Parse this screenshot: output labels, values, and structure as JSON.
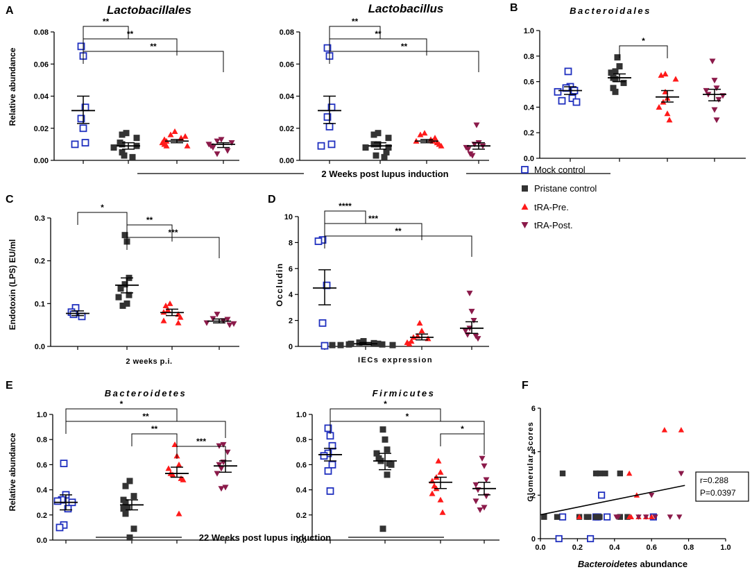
{
  "legend": {
    "items": [
      {
        "label": "Mock control",
        "marker": "square-open",
        "color": "#1f2fbf"
      },
      {
        "label": "Pristane control",
        "marker": "square",
        "color": "#333333"
      },
      {
        "label": "tRA-Pre.",
        "marker": "triangle-up",
        "color": "#ff1a1a"
      },
      {
        "label": "tRA-Post.",
        "marker": "triangle-down",
        "color": "#8b1a4a"
      }
    ]
  },
  "captions": {
    "two_weeks": "2 Weeks post lupus induction",
    "twentytwo_weeks": "22 Weeks post lupus induction"
  },
  "chart_data": [
    {
      "id": "A1",
      "type": "scatter",
      "panel_label": "A",
      "title": "Lactobacillales",
      "title_style": "italic",
      "ylabel": "Relative abundance",
      "xlabel": "",
      "ylim": [
        0,
        0.08
      ],
      "yticks": [
        "0.00",
        "0.02",
        "0.04",
        "0.06",
        "0.08"
      ],
      "groups": [
        {
          "name": "Mock control",
          "values": [
            0.071,
            0.065,
            0.033,
            0.026,
            0.02,
            0.011,
            0.01
          ],
          "mean": 0.031,
          "sem_low": 0.023,
          "sem_high": 0.04
        },
        {
          "name": "Pristane control",
          "values": [
            0.017,
            0.016,
            0.014,
            0.011,
            0.01,
            0.009,
            0.008,
            0.005,
            0.003,
            0.002
          ],
          "mean": 0.009,
          "sem_low": 0.007,
          "sem_high": 0.011
        },
        {
          "name": "tRA-Pre.",
          "values": [
            0.018,
            0.016,
            0.015,
            0.014,
            0.013,
            0.012,
            0.011,
            0.01,
            0.009,
            0.009
          ],
          "mean": 0.012,
          "sem_low": 0.011,
          "sem_high": 0.013
        },
        {
          "name": "tRA-Post.",
          "values": [
            0.013,
            0.012,
            0.011,
            0.01,
            0.009,
            0.008,
            0.006,
            0.004
          ],
          "mean": 0.01,
          "sem_low": 0.008,
          "sem_high": 0.011
        }
      ],
      "comparisons": [
        {
          "from": 0,
          "to": 1,
          "label": "**"
        },
        {
          "from": 0,
          "to": 2,
          "label": "**"
        },
        {
          "from": 0,
          "to": 3,
          "label": "**"
        }
      ]
    },
    {
      "id": "A2",
      "type": "scatter",
      "panel_label": "",
      "title": "Lactobacillus",
      "title_style": "italic",
      "ylabel": "",
      "xlabel": "",
      "ylim": [
        0,
        0.08
      ],
      "yticks": [
        "0.00",
        "0.02",
        "0.04",
        "0.06",
        "0.08"
      ],
      "groups": [
        {
          "name": "Mock control",
          "values": [
            0.07,
            0.065,
            0.033,
            0.027,
            0.021,
            0.01,
            0.009
          ],
          "mean": 0.031,
          "sem_low": 0.023,
          "sem_high": 0.04
        },
        {
          "name": "Pristane control",
          "values": [
            0.017,
            0.016,
            0.014,
            0.01,
            0.01,
            0.008,
            0.008,
            0.005,
            0.003,
            0.002
          ],
          "mean": 0.009,
          "sem_low": 0.007,
          "sem_high": 0.011
        },
        {
          "name": "tRA-Pre.",
          "values": [
            0.017,
            0.016,
            0.014,
            0.013,
            0.012,
            0.012,
            0.011,
            0.01,
            0.009
          ],
          "mean": 0.012,
          "sem_low": 0.011,
          "sem_high": 0.013
        },
        {
          "name": "tRA-Post.",
          "values": [
            0.022,
            0.011,
            0.01,
            0.009,
            0.008,
            0.007,
            0.004,
            0.003
          ],
          "mean": 0.009,
          "sem_low": 0.007,
          "sem_high": 0.011
        }
      ],
      "comparisons": [
        {
          "from": 0,
          "to": 1,
          "label": "**"
        },
        {
          "from": 0,
          "to": 2,
          "label": "**"
        },
        {
          "from": 0,
          "to": 3,
          "label": "**"
        }
      ]
    },
    {
      "id": "B",
      "type": "scatter",
      "panel_label": "B",
      "title": "Bacteroidales",
      "title_style": "spaced",
      "ylabel": "",
      "xlabel": "",
      "ylim": [
        0,
        1.0
      ],
      "yticks": [
        "0.0",
        "0.2",
        "0.4",
        "0.6",
        "0.8",
        "1.0"
      ],
      "groups": [
        {
          "name": "Mock control",
          "values": [
            0.68,
            0.56,
            0.55,
            0.53,
            0.52,
            0.47,
            0.45,
            0.44
          ],
          "mean": 0.53,
          "sem_low": 0.5,
          "sem_high": 0.56
        },
        {
          "name": "Pristane control",
          "values": [
            0.79,
            0.72,
            0.68,
            0.67,
            0.63,
            0.62,
            0.59,
            0.55,
            0.52
          ],
          "mean": 0.63,
          "sem_low": 0.6,
          "sem_high": 0.66
        },
        {
          "name": "tRA-Pre.",
          "values": [
            0.66,
            0.65,
            0.62,
            0.52,
            0.47,
            0.44,
            0.4,
            0.35,
            0.3
          ],
          "mean": 0.48,
          "sem_low": 0.44,
          "sem_high": 0.53
        },
        {
          "name": "tRA-Post.",
          "values": [
            0.76,
            0.61,
            0.55,
            0.53,
            0.5,
            0.49,
            0.46,
            0.38,
            0.3
          ],
          "mean": 0.5,
          "sem_low": 0.45,
          "sem_high": 0.54
        }
      ],
      "comparisons": [
        {
          "from": 1,
          "to": 2,
          "label": "*"
        }
      ]
    },
    {
      "id": "C",
      "type": "scatter",
      "panel_label": "C",
      "title": "",
      "title_style": "none",
      "ylabel": "Endotoxin (LPS) EU/ml",
      "xlabel": "2 weeks p.i.",
      "ylim": [
        0,
        0.3
      ],
      "yticks": [
        "0.0",
        "0.1",
        "0.2",
        "0.3"
      ],
      "groups": [
        {
          "name": "Mock control",
          "values": [
            0.09,
            0.08,
            0.075,
            0.07
          ],
          "mean": 0.077,
          "sem_low": 0.072,
          "sem_high": 0.083
        },
        {
          "name": "Pristane control",
          "values": [
            0.26,
            0.245,
            0.16,
            0.145,
            0.135,
            0.12,
            0.115,
            0.1,
            0.095
          ],
          "mean": 0.143,
          "sem_low": 0.125,
          "sem_high": 0.16
        },
        {
          "name": "tRA-Pre.",
          "values": [
            0.1,
            0.095,
            0.085,
            0.08,
            0.075,
            0.068,
            0.06,
            0.055
          ],
          "mean": 0.079,
          "sem_low": 0.072,
          "sem_high": 0.087
        },
        {
          "name": "tRA-Post.",
          "values": [
            0.075,
            0.065,
            0.063,
            0.06,
            0.055,
            0.053,
            0.05
          ],
          "mean": 0.059,
          "sem_low": 0.055,
          "sem_high": 0.064
        }
      ],
      "comparisons": [
        {
          "from": 0,
          "to": 1,
          "label": "*"
        },
        {
          "from": 1,
          "to": 2,
          "label": "**"
        },
        {
          "from": 1,
          "to": 3,
          "label": "***"
        }
      ]
    },
    {
      "id": "D",
      "type": "scatter",
      "panel_label": "D",
      "title": "",
      "title_style": "none",
      "ylabel": "Occludin",
      "xlabel": "IECs expression",
      "ylim": [
        0,
        10
      ],
      "yticks": [
        "0",
        "2",
        "4",
        "6",
        "8",
        "10"
      ],
      "groups": [
        {
          "name": "Mock control",
          "values": [
            8.2,
            8.1,
            4.7,
            1.8,
            0.05
          ],
          "mean": 4.5,
          "sem_low": 3.2,
          "sem_high": 5.9
        },
        {
          "name": "Pristane control",
          "values": [
            0.4,
            0.3,
            0.25,
            0.2,
            0.2,
            0.15,
            0.15,
            0.1,
            0.1,
            0.1
          ],
          "mean": 0.2,
          "sem_low": 0.12,
          "sem_high": 0.3
        },
        {
          "name": "tRA-Pre.",
          "values": [
            1.8,
            1.2,
            0.8,
            0.7,
            0.6,
            0.4,
            0.3,
            0.2
          ],
          "mean": 0.7,
          "sem_low": 0.5,
          "sem_high": 0.95
        },
        {
          "name": "tRA-Post.",
          "values": [
            4.1,
            2.7,
            2.0,
            1.4,
            1.2,
            0.9,
            0.8,
            0.6
          ],
          "mean": 1.4,
          "sem_low": 1.0,
          "sem_high": 1.9
        }
      ],
      "comparisons": [
        {
          "from": 0,
          "to": 1,
          "label": "****"
        },
        {
          "from": 0,
          "to": 2,
          "label": "***"
        },
        {
          "from": 0,
          "to": 3,
          "label": "**"
        }
      ]
    },
    {
      "id": "E1",
      "type": "scatter",
      "panel_label": "E",
      "title": "Bacteroidetes",
      "title_style": "spaced",
      "ylabel": "Relative abundance",
      "xlabel": "",
      "ylim": [
        0,
        1.0
      ],
      "yticks": [
        "0.0",
        "0.2",
        "0.4",
        "0.6",
        "0.8",
        "1.0"
      ],
      "groups": [
        {
          "name": "Mock control",
          "values": [
            0.61,
            0.36,
            0.32,
            0.31,
            0.3,
            0.25,
            0.12,
            0.1
          ],
          "mean": 0.3,
          "sem_low": 0.24,
          "sem_high": 0.36
        },
        {
          "name": "Pristane control",
          "values": [
            0.47,
            0.43,
            0.35,
            0.32,
            0.3,
            0.26,
            0.25,
            0.21,
            0.09,
            0.02
          ],
          "mean": 0.28,
          "sem_low": 0.24,
          "sem_high": 0.32
        },
        {
          "name": "tRA-Pre.",
          "values": [
            0.76,
            0.67,
            0.6,
            0.57,
            0.53,
            0.52,
            0.49,
            0.48,
            0.21
          ],
          "mean": 0.53,
          "sem_low": 0.5,
          "sem_high": 0.58
        },
        {
          "name": "tRA-Post.",
          "values": [
            0.76,
            0.75,
            0.7,
            0.62,
            0.6,
            0.57,
            0.53,
            0.42,
            0.41
          ],
          "mean": 0.59,
          "sem_low": 0.54,
          "sem_high": 0.63
        }
      ],
      "comparisons": [
        {
          "from": 0,
          "to": 2,
          "label": "*"
        },
        {
          "from": 0,
          "to": 3,
          "label": "**"
        },
        {
          "from": 1,
          "to": 2,
          "label": "**"
        },
        {
          "from": 2,
          "to": 3,
          "label": "***"
        }
      ]
    },
    {
      "id": "E2",
      "type": "scatter",
      "panel_label": "",
      "title": "Firmicutes",
      "title_style": "spaced",
      "ylabel": "",
      "xlabel": "",
      "ylim": [
        0,
        1.0
      ],
      "yticks": [
        "0.0",
        "0.2",
        "0.4",
        "0.6",
        "0.8",
        "1.0"
      ],
      "groups": [
        {
          "name": "Mock control",
          "values": [
            0.89,
            0.83,
            0.75,
            0.69,
            0.67,
            0.6,
            0.55,
            0.39
          ],
          "mean": 0.68,
          "sem_low": 0.63,
          "sem_high": 0.73
        },
        {
          "name": "Pristane control",
          "values": [
            0.88,
            0.8,
            0.72,
            0.69,
            0.65,
            0.63,
            0.61,
            0.6,
            0.52,
            0.09
          ],
          "mean": 0.63,
          "sem_low": 0.56,
          "sem_high": 0.69
        },
        {
          "name": "tRA-Pre.",
          "values": [
            0.63,
            0.54,
            0.5,
            0.47,
            0.43,
            0.41,
            0.37,
            0.32,
            0.22
          ],
          "mean": 0.46,
          "sem_low": 0.41,
          "sem_high": 0.5
        },
        {
          "name": "tRA-Post.",
          "values": [
            0.65,
            0.59,
            0.48,
            0.44,
            0.4,
            0.35,
            0.31,
            0.26,
            0.24
          ],
          "mean": 0.41,
          "sem_low": 0.36,
          "sem_high": 0.46
        }
      ],
      "comparisons": [
        {
          "from": 0,
          "to": 2,
          "label": "*"
        },
        {
          "from": 0,
          "to": 3,
          "label": "*"
        },
        {
          "from": 2,
          "to": 3,
          "label": "*"
        }
      ]
    },
    {
      "id": "F",
      "type": "scatter",
      "panel_label": "F",
      "title": "",
      "title_style": "none",
      "ylabel": "Glomerular Scores",
      "xlabel": "Bacteroidetes abundance",
      "xlabel_italic_part": "Bacteroidetes",
      "xlabel_rest": " abundance",
      "xlim": [
        0,
        1.0
      ],
      "ylim": [
        0,
        6
      ],
      "xticks": [
        "0.0",
        "0.2",
        "0.4",
        "0.6",
        "0.8",
        "1.0"
      ],
      "yticks": [
        "0",
        "2",
        "4",
        "6"
      ],
      "points": [
        {
          "group": 0,
          "x": 0.1,
          "y": 0
        },
        {
          "group": 0,
          "x": 0.27,
          "y": 0
        },
        {
          "group": 0,
          "x": 0.12,
          "y": 1
        },
        {
          "group": 0,
          "x": 0.3,
          "y": 1
        },
        {
          "group": 0,
          "x": 0.31,
          "y": 1
        },
        {
          "group": 0,
          "x": 0.36,
          "y": 1
        },
        {
          "group": 0,
          "x": 0.33,
          "y": 2
        },
        {
          "group": 0,
          "x": 0.61,
          "y": 1
        },
        {
          "group": 1,
          "x": 0.02,
          "y": 1
        },
        {
          "group": 1,
          "x": 0.09,
          "y": 1
        },
        {
          "group": 1,
          "x": 0.21,
          "y": 1
        },
        {
          "group": 1,
          "x": 0.25,
          "y": 1
        },
        {
          "group": 1,
          "x": 0.3,
          "y": 1
        },
        {
          "group": 1,
          "x": 0.32,
          "y": 1
        },
        {
          "group": 1,
          "x": 0.47,
          "y": 1
        },
        {
          "group": 1,
          "x": 0.43,
          "y": 1
        },
        {
          "group": 1,
          "x": 0.26,
          "y": 1
        },
        {
          "group": 1,
          "x": 0.12,
          "y": 3
        },
        {
          "group": 1,
          "x": 0.3,
          "y": 3
        },
        {
          "group": 1,
          "x": 0.32,
          "y": 3
        },
        {
          "group": 1,
          "x": 0.35,
          "y": 3
        },
        {
          "group": 1,
          "x": 0.43,
          "y": 3
        },
        {
          "group": 2,
          "x": 0.21,
          "y": 1
        },
        {
          "group": 2,
          "x": 0.48,
          "y": 1
        },
        {
          "group": 2,
          "x": 0.49,
          "y": 1
        },
        {
          "group": 2,
          "x": 0.53,
          "y": 1
        },
        {
          "group": 2,
          "x": 0.57,
          "y": 1
        },
        {
          "group": 2,
          "x": 0.6,
          "y": 1
        },
        {
          "group": 2,
          "x": 0.52,
          "y": 2
        },
        {
          "group": 2,
          "x": 0.67,
          "y": 5
        },
        {
          "group": 2,
          "x": 0.76,
          "y": 5
        },
        {
          "group": 2,
          "x": 0.48,
          "y": 3
        },
        {
          "group": 3,
          "x": 0.41,
          "y": 1
        },
        {
          "group": 3,
          "x": 0.42,
          "y": 1
        },
        {
          "group": 3,
          "x": 0.53,
          "y": 1
        },
        {
          "group": 3,
          "x": 0.57,
          "y": 1
        },
        {
          "group": 3,
          "x": 0.62,
          "y": 1
        },
        {
          "group": 3,
          "x": 0.75,
          "y": 1
        },
        {
          "group": 3,
          "x": 0.6,
          "y": 2
        },
        {
          "group": 3,
          "x": 0.76,
          "y": 3
        },
        {
          "group": 3,
          "x": 0.76,
          "y": 3
        },
        {
          "group": 3,
          "x": 0.7,
          "y": 1
        }
      ],
      "regression": {
        "x0": 0.0,
        "y0": 1.1,
        "x1": 0.78,
        "y1": 2.45
      },
      "stats": {
        "r": "r=0.288",
        "p": "P=0.0397"
      }
    }
  ]
}
